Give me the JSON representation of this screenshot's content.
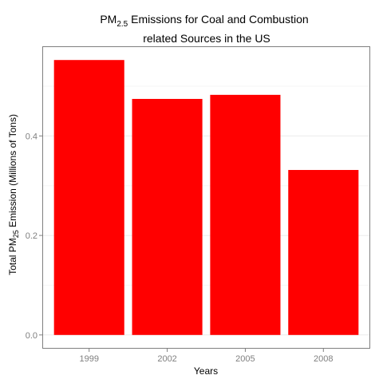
{
  "chart_data": {
    "type": "bar",
    "title_line1": {
      "pre": "PM",
      "sub": "2.5",
      "post": " Emissions for Coal and Combustion"
    },
    "title_line2": "related Sources in the US",
    "xlabel": "Years",
    "ylabel": {
      "pre": "Total PM",
      "sub": "25",
      "post": " Emission (Millions of Tons)"
    },
    "categories": [
      "1999",
      "2002",
      "2005",
      "2008"
    ],
    "values": [
      0.5526,
      0.4744,
      0.4826,
      0.3316
    ],
    "ylim": [
      -0.0276,
      0.5802
    ],
    "yticks": [
      0.0,
      0.2,
      0.4
    ],
    "ytick_labels": [
      "0.0",
      "0.2",
      "0.4"
    ],
    "bar_color": "#ff0000",
    "panel_border_color": "#7f7f7f",
    "grid_major_color": "#ebebeb",
    "grid_minor_color": "#f5f5f5",
    "grid": true,
    "legend": "none"
  }
}
